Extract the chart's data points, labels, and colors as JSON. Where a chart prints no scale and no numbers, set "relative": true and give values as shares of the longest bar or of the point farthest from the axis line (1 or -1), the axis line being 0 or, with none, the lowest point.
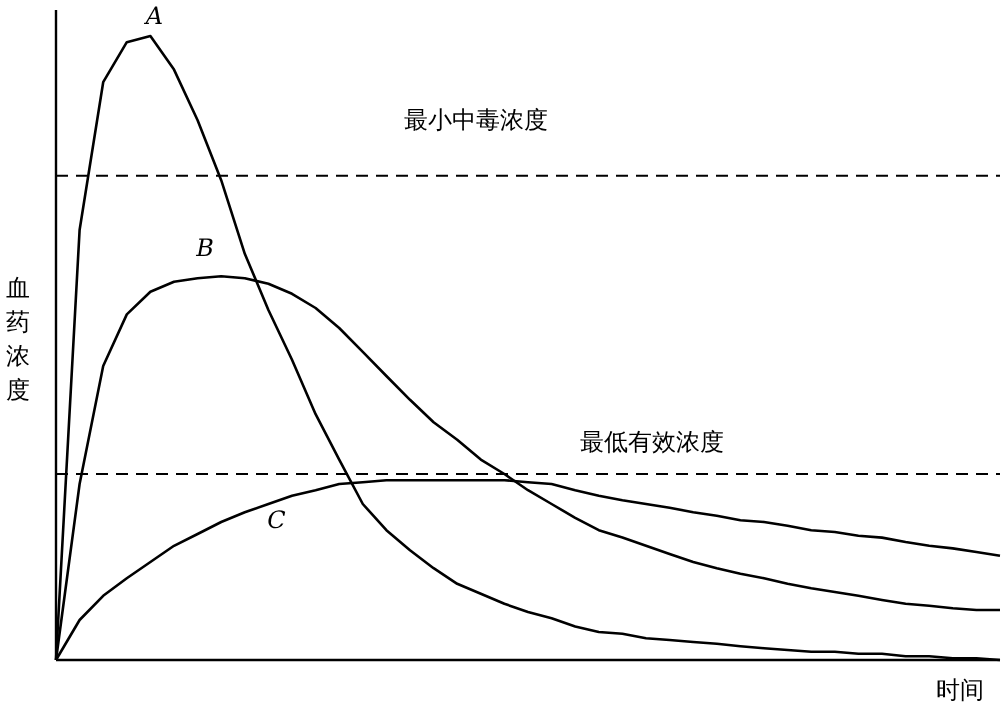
{
  "chart_data": {
    "type": "line",
    "relative": true,
    "xlabel": "时间",
    "ylabel": "血药浓度",
    "tick_labels": false,
    "grid": false,
    "marker": "none",
    "line_style": "solid",
    "categories": [
      null,
      null,
      null,
      null,
      null,
      null,
      null,
      null,
      null,
      null,
      null,
      null,
      null,
      null,
      null,
      null,
      null,
      null,
      null,
      null,
      null,
      null,
      null,
      null,
      null,
      null,
      null,
      null,
      null,
      null,
      null,
      null,
      null,
      null,
      null,
      null,
      null,
      null,
      null,
      null,
      null
    ],
    "series": [
      {
        "color": "#000000",
        "values": [
          0,
          0.689,
          0.926,
          0.99,
          1,
          0.946,
          0.865,
          0.769,
          0.651,
          0.561,
          0.481,
          0.394,
          0.321,
          0.25,
          0.208,
          0.176,
          0.147,
          0.122,
          0.106,
          0.09,
          0.077,
          0.067,
          0.054,
          0.045,
          0.042,
          0.035,
          0.032,
          0.029,
          0.026,
          0.022,
          0.019,
          0.016,
          0.013,
          0.013,
          0.01,
          0.01,
          0.006,
          0.006,
          0.003,
          0.003,
          0
        ]
      },
      {
        "color": "#000000",
        "values": [
          0,
          0.282,
          0.471,
          0.554,
          0.59,
          0.606,
          0.612,
          0.615,
          0.612,
          0.603,
          0.587,
          0.564,
          0.532,
          0.494,
          0.455,
          0.417,
          0.381,
          0.353,
          0.321,
          0.298,
          0.272,
          0.25,
          0.228,
          0.208,
          0.196,
          0.183,
          0.17,
          0.157,
          0.147,
          0.138,
          0.131,
          0.122,
          0.115,
          0.109,
          0.103,
          0.096,
          0.09,
          0.087,
          0.083,
          0.08,
          0.08
        ]
      },
      {
        "color": "#000000",
        "values": [
          0,
          0.064,
          0.103,
          0.131,
          0.157,
          0.183,
          0.202,
          0.221,
          0.237,
          0.25,
          0.263,
          0.272,
          0.282,
          0.285,
          0.288,
          0.288,
          0.288,
          0.288,
          0.288,
          0.288,
          0.285,
          0.282,
          0.272,
          0.263,
          0.256,
          0.25,
          0.244,
          0.237,
          0.231,
          0.224,
          0.221,
          0.215,
          0.208,
          0.205,
          0.199,
          0.196,
          0.189,
          0.183,
          0.179,
          0.173,
          0.167
        ]
      }
    ],
    "ref_lines": [
      {
        "axis": "y",
        "value": 0.776,
        "label": "最小中毒浓度",
        "line_style": "dashed"
      },
      {
        "axis": "y",
        "value": 0.298,
        "label": "最低有效浓度",
        "line_style": "dashed"
      }
    ],
    "annotations": [
      "A",
      "B",
      "C"
    ]
  }
}
